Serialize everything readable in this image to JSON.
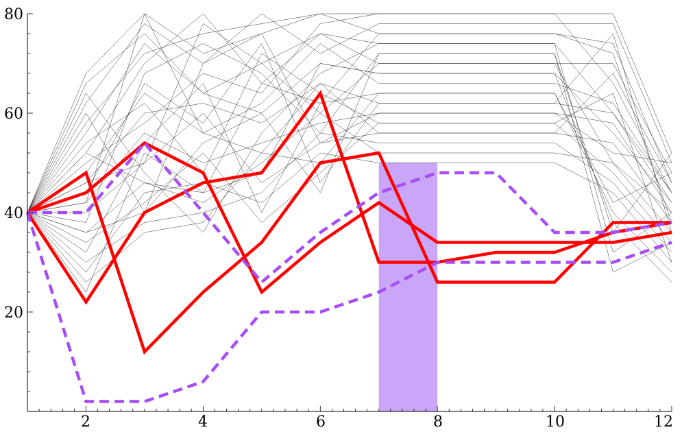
{
  "chart_data": {
    "type": "line",
    "title": "",
    "xlabel": "",
    "ylabel": "",
    "xlim": [
      1,
      12
    ],
    "ylim": [
      0,
      80
    ],
    "x_ticks": [
      "2",
      "4",
      "6",
      "8",
      "10",
      "12"
    ],
    "y_ticks": [
      "20",
      "40",
      "60",
      "80"
    ],
    "grid": false,
    "highlight_band": {
      "x": [
        7,
        8
      ],
      "y": [
        0,
        50
      ],
      "color": "#c9a6f7"
    },
    "colors": {
      "background_paths": "#333333",
      "red": "#ff0000",
      "dashed": "#a64df5"
    },
    "background_paths": [
      [
        40,
        68,
        80,
        72,
        76,
        80,
        80,
        80,
        80,
        80,
        80,
        52
      ],
      [
        40,
        62,
        78,
        70,
        80,
        72,
        78,
        78,
        78,
        78,
        78,
        50
      ],
      [
        40,
        56,
        74,
        64,
        70,
        76,
        70,
        70,
        70,
        70,
        70,
        48
      ],
      [
        40,
        52,
        70,
        80,
        66,
        62,
        76,
        76,
        76,
        76,
        74,
        46
      ],
      [
        40,
        48,
        64,
        56,
        62,
        74,
        66,
        66,
        66,
        66,
        62,
        44
      ],
      [
        40,
        46,
        60,
        62,
        58,
        66,
        62,
        62,
        62,
        62,
        60,
        42
      ],
      [
        40,
        42,
        56,
        50,
        54,
        58,
        60,
        60,
        60,
        60,
        58,
        40
      ],
      [
        40,
        40,
        50,
        60,
        46,
        54,
        56,
        56,
        56,
        56,
        54,
        38
      ],
      [
        40,
        36,
        46,
        42,
        50,
        60,
        52,
        52,
        52,
        52,
        50,
        36
      ],
      [
        40,
        34,
        42,
        52,
        38,
        48,
        58,
        58,
        58,
        58,
        48,
        34
      ],
      [
        40,
        30,
        38,
        40,
        44,
        56,
        54,
        54,
        54,
        54,
        46,
        32
      ],
      [
        40,
        28,
        44,
        46,
        42,
        52,
        50,
        50,
        50,
        50,
        44,
        30
      ],
      [
        40,
        26,
        36,
        38,
        52,
        50,
        64,
        64,
        64,
        64,
        40,
        28
      ],
      [
        40,
        24,
        52,
        44,
        48,
        70,
        68,
        68,
        68,
        68,
        38,
        26
      ],
      [
        40,
        60,
        40,
        54,
        60,
        44,
        72,
        72,
        72,
        72,
        36,
        52
      ],
      [
        40,
        64,
        48,
        36,
        56,
        68,
        74,
        74,
        74,
        74,
        32,
        40
      ],
      [
        40,
        44,
        66,
        58,
        74,
        46,
        62,
        62,
        62,
        62,
        76,
        36
      ],
      [
        40,
        50,
        58,
        68,
        64,
        78,
        80,
        80,
        80,
        80,
        66,
        44
      ],
      [
        40,
        54,
        62,
        48,
        72,
        64,
        58,
        58,
        58,
        58,
        64,
        30
      ],
      [
        40,
        32,
        54,
        66,
        40,
        62,
        64,
        64,
        64,
        64,
        42,
        48
      ],
      [
        40,
        38,
        68,
        74,
        68,
        56,
        72,
        72,
        72,
        72,
        28,
        34
      ],
      [
        40,
        58,
        72,
        76,
        78,
        80,
        76,
        76,
        76,
        76,
        72,
        38
      ],
      [
        40,
        66,
        76,
        64,
        60,
        70,
        68,
        68,
        68,
        68,
        56,
        42
      ],
      [
        40,
        36,
        40,
        70,
        76,
        54,
        60,
        60,
        60,
        60,
        52,
        50
      ],
      [
        40,
        42,
        80,
        56,
        52,
        66,
        56,
        56,
        56,
        56,
        68,
        46
      ],
      [
        40,
        46,
        50,
        78,
        70,
        60,
        70,
        70,
        70,
        70,
        50,
        40
      ],
      [
        40,
        52,
        46,
        44,
        66,
        76,
        74,
        74,
        74,
        74,
        60,
        44
      ]
    ],
    "red_series": [
      [
        40,
        48,
        12,
        24,
        34,
        50,
        52,
        26,
        26,
        26,
        38,
        38
      ],
      [
        40,
        44,
        54,
        48,
        24,
        34,
        42,
        34,
        34,
        34,
        34,
        36
      ],
      [
        40,
        22,
        40,
        46,
        48,
        64,
        30,
        30,
        32,
        32,
        36,
        38
      ]
    ],
    "dashed_series": [
      [
        40,
        2,
        2,
        6,
        20,
        20,
        24,
        30,
        30,
        30,
        30,
        34
      ],
      [
        40,
        40,
        54,
        40,
        26,
        36,
        44,
        48,
        48,
        36,
        36,
        38
      ]
    ]
  }
}
